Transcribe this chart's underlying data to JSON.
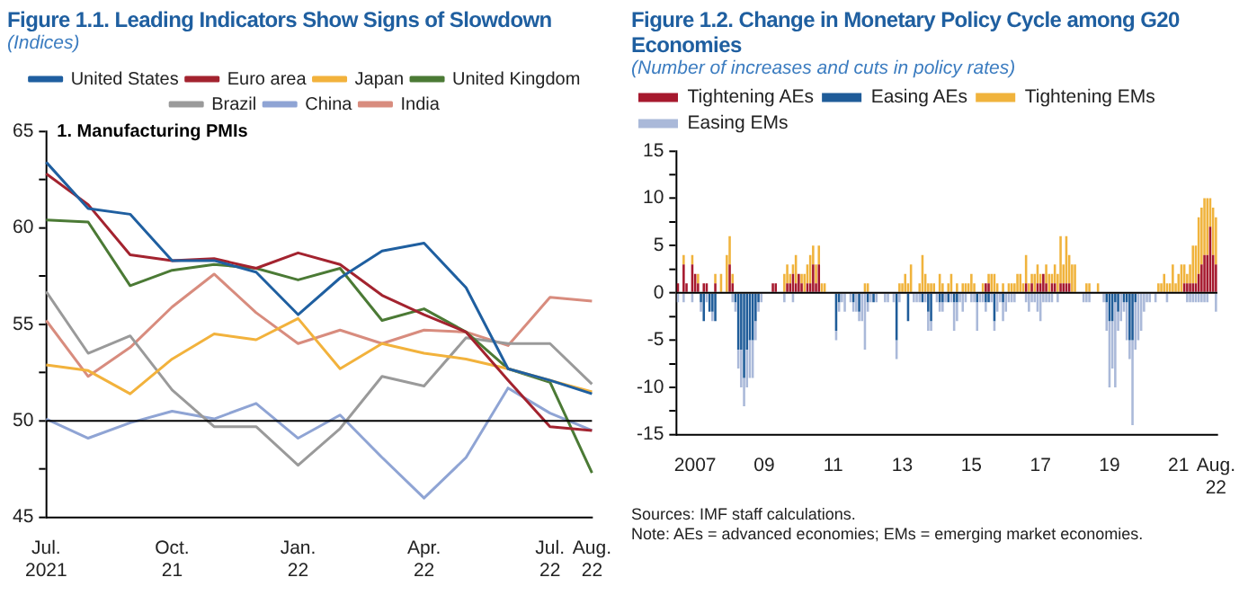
{
  "chart_data": [
    {
      "type": "line",
      "title": "Figure 1.1.  Leading Indicators Show Signs of Slowdown",
      "subtitle": "(Indices)",
      "annotations": [
        "1. Manufacturing PMIs"
      ],
      "categories": [
        "Jul. 2021",
        null,
        null,
        "Oct. 21",
        null,
        null,
        "Jan. 22",
        null,
        null,
        "Apr. 22",
        null,
        null,
        "Jul. 22",
        "Aug. 22"
      ],
      "ylim": [
        45,
        65
      ],
      "yticks": [
        45,
        {
          "value": 47.5,
          "label": null
        },
        50,
        {
          "value": 52.5,
          "label": null
        },
        55,
        {
          "value": 57.5,
          "label": null
        },
        60,
        {
          "value": 62.5,
          "label": null
        },
        65
      ],
      "legend": "top",
      "marker": "none",
      "line_style": "solid",
      "ref_lines": [
        {
          "axis": "y",
          "value": 50,
          "color": "#000000"
        }
      ],
      "series": [
        {
          "name": "United States",
          "color": "#1f5fa0",
          "values": [
            63.4,
            61.0,
            60.7,
            58.3,
            58.3,
            57.7,
            55.5,
            57.4,
            58.8,
            59.2,
            56.9,
            52.7,
            52.1,
            51.4
          ]
        },
        {
          "name": "Euro area",
          "color": "#a3232f",
          "values": [
            62.8,
            61.2,
            58.6,
            58.3,
            58.4,
            57.9,
            58.7,
            58.1,
            56.5,
            55.5,
            54.6,
            52.1,
            49.7,
            49.5
          ]
        },
        {
          "name": "Japan",
          "color": "#f2b23c",
          "values": [
            52.9,
            52.6,
            51.4,
            53.2,
            54.5,
            54.2,
            55.3,
            52.7,
            54.0,
            53.5,
            53.2,
            52.7,
            52.1,
            51.5
          ]
        },
        {
          "name": "United Kingdom",
          "color": "#4b7a35",
          "values": [
            60.4,
            60.3,
            57.0,
            57.8,
            58.1,
            57.9,
            57.3,
            57.9,
            55.2,
            55.8,
            54.6,
            52.7,
            52.0,
            47.3
          ]
        },
        {
          "name": "Brazil",
          "color": "#9a9a9a",
          "values": [
            56.7,
            53.5,
            54.4,
            51.6,
            49.7,
            49.7,
            47.7,
            49.6,
            52.3,
            51.8,
            54.3,
            54.0,
            54.0,
            51.9
          ]
        },
        {
          "name": "China",
          "color": "#8fa4d4",
          "values": [
            50.1,
            49.1,
            49.9,
            50.5,
            50.1,
            50.9,
            49.1,
            50.3,
            48.1,
            46.0,
            48.1,
            51.7,
            50.4,
            49.5
          ]
        },
        {
          "name": "India",
          "color": "#d88c7e",
          "values": [
            55.2,
            52.3,
            53.8,
            55.9,
            57.6,
            55.6,
            54.0,
            54.7,
            54.0,
            54.7,
            54.6,
            53.9,
            56.4,
            56.2
          ]
        }
      ]
    },
    {
      "type": "bar",
      "stacked": true,
      "title": "Figure 1.2.  Change in Monetary Policy Cycle among G20 Economies",
      "subtitle": "(Number of increases and cuts in policy rates)",
      "annotations": [
        "Sources: IMF staff calculations.",
        "Note: AEs = advanced economies; EMs = emerging market economies."
      ],
      "categories": [
        null,
        null,
        null,
        null,
        null,
        null,
        "2007",
        null,
        null,
        null,
        null,
        null,
        null,
        null,
        null,
        null,
        null,
        null,
        null,
        null,
        null,
        null,
        null,
        null,
        null,
        null,
        null,
        null,
        null,
        null,
        "09",
        null,
        null,
        null,
        null,
        null,
        null,
        null,
        null,
        null,
        null,
        null,
        null,
        null,
        null,
        null,
        null,
        null,
        null,
        null,
        null,
        null,
        null,
        null,
        "11",
        null,
        null,
        null,
        null,
        null,
        null,
        null,
        null,
        null,
        null,
        null,
        null,
        null,
        null,
        null,
        null,
        null,
        null,
        null,
        null,
        null,
        null,
        null,
        "13",
        null,
        null,
        null,
        null,
        null,
        null,
        null,
        null,
        null,
        null,
        null,
        null,
        null,
        null,
        null,
        null,
        null,
        null,
        null,
        null,
        null,
        null,
        null,
        "15",
        null,
        null,
        null,
        null,
        null,
        null,
        null,
        null,
        null,
        null,
        null,
        null,
        null,
        null,
        null,
        null,
        null,
        null,
        null,
        null,
        null,
        null,
        null,
        "17",
        null,
        null,
        null,
        null,
        null,
        null,
        null,
        null,
        null,
        null,
        null,
        null,
        null,
        null,
        null,
        null,
        null,
        null,
        null,
        null,
        null,
        null,
        null,
        "19",
        null,
        null,
        null,
        null,
        null,
        null,
        null,
        null,
        null,
        null,
        null,
        null,
        null,
        null,
        null,
        null,
        null,
        null,
        null,
        null,
        null,
        null,
        null,
        "21",
        null,
        null,
        null,
        null,
        null,
        null,
        null,
        null,
        null,
        null,
        null,
        null,
        "Aug. 22"
      ],
      "ylim": [
        -15,
        15
      ],
      "yticks": [
        -15,
        {
          "value": -12.5,
          "label": null
        },
        -10,
        {
          "value": -7.5,
          "label": null
        },
        -5,
        {
          "value": -2.5,
          "label": null
        },
        0,
        {
          "value": 2.5,
          "label": null
        },
        5,
        {
          "value": 7.5,
          "label": null
        },
        10,
        {
          "value": 12.5,
          "label": null
        },
        15
      ],
      "legend": "top left",
      "ref_lines": [
        {
          "axis": "y",
          "value": 0,
          "color": "#000000"
        }
      ],
      "series": [
        {
          "name": "Tightening AEs",
          "color": "#a6192e",
          "values": [
            1,
            0,
            3,
            1,
            0,
            3,
            2,
            1,
            0,
            1,
            1,
            0,
            0,
            1,
            0,
            0,
            0,
            0,
            3,
            1,
            0,
            0,
            0,
            0,
            0,
            0,
            0,
            0,
            0,
            0,
            0,
            0,
            0,
            1,
            1,
            0,
            0,
            0,
            1,
            1,
            2,
            1,
            2,
            1,
            0,
            1,
            1,
            3,
            1,
            3,
            0,
            0,
            0,
            0,
            0,
            0,
            0,
            0,
            0,
            0,
            0,
            0,
            0,
            0,
            0,
            0,
            0,
            0,
            0,
            0,
            0,
            0,
            0,
            0,
            0,
            0,
            0,
            0,
            0,
            0,
            0,
            0,
            0,
            0,
            0,
            0,
            0,
            0,
            0,
            0,
            0,
            0,
            0,
            0,
            0,
            0,
            0,
            0,
            0,
            0,
            0,
            0,
            0,
            0,
            0,
            0,
            0,
            1,
            1,
            0,
            0,
            0,
            0,
            0,
            0,
            0,
            0,
            0,
            0,
            0,
            0,
            1,
            0,
            1,
            0,
            1,
            1,
            2,
            1,
            0,
            1,
            1,
            0,
            1,
            1,
            1,
            1,
            0,
            0,
            0,
            0,
            0,
            0,
            0,
            0,
            0,
            0,
            0,
            0,
            0,
            0,
            0,
            0,
            0,
            0,
            0,
            0,
            0,
            0,
            0,
            0,
            0,
            0,
            0,
            0,
            0,
            0,
            0,
            0,
            0,
            0,
            0,
            0,
            0,
            0,
            0,
            1,
            1,
            1,
            1,
            1,
            2,
            3,
            4,
            4,
            7,
            4,
            3
          ]
        },
        {
          "name": "Easing AEs",
          "color": "#1f5c99",
          "values": [
            0,
            0,
            0,
            0,
            0,
            0,
            0,
            0,
            -1,
            -3,
            0,
            -2,
            -2,
            -3,
            0,
            0,
            0,
            0,
            0,
            0,
            -1,
            -6,
            -6,
            -9,
            -6,
            -5,
            -5,
            -3,
            -1,
            0,
            0,
            0,
            0,
            0,
            0,
            0,
            0,
            0,
            0,
            0,
            0,
            0,
            0,
            0,
            0,
            0,
            0,
            0,
            0,
            0,
            0,
            0,
            0,
            0,
            0,
            -4,
            -1,
            0,
            0,
            0,
            0,
            -1,
            0,
            -2,
            0,
            0,
            -1,
            0,
            -1,
            0,
            0,
            0,
            0,
            0,
            0,
            0,
            -5,
            0,
            0,
            0,
            -3,
            0,
            0,
            0,
            0,
            -1,
            0,
            -2,
            -3,
            0,
            0,
            -1,
            -1,
            0,
            -1,
            0,
            -1,
            -1,
            0,
            0,
            0,
            0,
            0,
            0,
            -1,
            0,
            0,
            -1,
            -1,
            0,
            -3,
            0,
            0,
            -1,
            0,
            0,
            0,
            0,
            0,
            0,
            0,
            0,
            0,
            0,
            0,
            0,
            0,
            0,
            0,
            0,
            0,
            0,
            0,
            0,
            0,
            0,
            0,
            0,
            0,
            0,
            0,
            0,
            0,
            0,
            0,
            0,
            0,
            0,
            0,
            -1,
            -3,
            -3,
            -1,
            -2,
            0,
            -1,
            -1,
            -5,
            -5,
            -1,
            0,
            0,
            0,
            0,
            0,
            0,
            0,
            0,
            0,
            0,
            0,
            0,
            0,
            0,
            0,
            0,
            0,
            0,
            0,
            0,
            0,
            0,
            0,
            0,
            0,
            0,
            0,
            0
          ]
        },
        {
          "name": "Tightening EMs",
          "color": "#f0b33c",
          "values": [
            0,
            0,
            1,
            0,
            0,
            1,
            0,
            1,
            0,
            0,
            0,
            0,
            0,
            1,
            0,
            2,
            0,
            4,
            3,
            1,
            0,
            0,
            0,
            0,
            0,
            0,
            0,
            0,
            0,
            0,
            0,
            0,
            0,
            0,
            0,
            0,
            0,
            2,
            2,
            1,
            1,
            3,
            0,
            1,
            2,
            2,
            3,
            2,
            2,
            2,
            1,
            1,
            0,
            0,
            0,
            0,
            0,
            0,
            0,
            0,
            0,
            0,
            0,
            0,
            0,
            1,
            1,
            0,
            0,
            0,
            0,
            0,
            0,
            0,
            0,
            0,
            0,
            1,
            1,
            2,
            1,
            3,
            0,
            0,
            1,
            4,
            2,
            1,
            1,
            1,
            0,
            2,
            1,
            0,
            1,
            2,
            0,
            1,
            0,
            1,
            1,
            1,
            2,
            1,
            0,
            0,
            1,
            0,
            1,
            2,
            2,
            1,
            0,
            1,
            0,
            1,
            1,
            1,
            2,
            2,
            1,
            3,
            1,
            1,
            2,
            2,
            1,
            0,
            2,
            2,
            1,
            2,
            2,
            5,
            2,
            5,
            3,
            3,
            3,
            0,
            0,
            0,
            1,
            1,
            0,
            0,
            1,
            0,
            0,
            0,
            0,
            0,
            0,
            0,
            0,
            0,
            0,
            0,
            0,
            0,
            0,
            0,
            0,
            0,
            0,
            0,
            0,
            1,
            1,
            2,
            1,
            1,
            3,
            1,
            2,
            3,
            2,
            1,
            2,
            4,
            4,
            6,
            6,
            6,
            6,
            3,
            5,
            5
          ]
        },
        {
          "name": "Easing EMs",
          "color": "#aab9d9",
          "values": [
            -1,
            0,
            -1,
            0,
            0,
            -1,
            0,
            0,
            -1,
            0,
            -1,
            0,
            -1,
            0,
            0,
            0,
            0,
            0,
            0,
            -1,
            -1,
            -2,
            -4,
            -3,
            -4,
            -4,
            -4,
            -2,
            -1,
            -1,
            0,
            0,
            0,
            0,
            0,
            0,
            0,
            -1,
            0,
            0,
            -1,
            0,
            0,
            0,
            0,
            0,
            0,
            0,
            0,
            0,
            0,
            0,
            0,
            0,
            0,
            -1,
            -1,
            -1,
            -2,
            0,
            -1,
            -1,
            -2,
            -1,
            -3,
            -6,
            -1,
            -1,
            0,
            -1,
            0,
            0,
            -1,
            -1,
            0,
            -1,
            -2,
            -1,
            0,
            0,
            0,
            0,
            -1,
            -1,
            -1,
            0,
            -1,
            -2,
            -1,
            0,
            -1,
            -1,
            -1,
            -1,
            0,
            -1,
            -3,
            -2,
            -1,
            -2,
            -1,
            0,
            -1,
            -1,
            -3,
            -1,
            -1,
            -1,
            0,
            -1,
            -1,
            -2,
            -1,
            -2,
            -2,
            -1,
            -1,
            -1,
            0,
            0,
            0,
            -1,
            -2,
            -1,
            -1,
            -2,
            -3,
            -1,
            -1,
            -1,
            -1,
            0,
            -1,
            0,
            0,
            0,
            0,
            0,
            0,
            0,
            0,
            -1,
            -1,
            -1,
            0,
            0,
            0,
            0,
            -1,
            -3,
            -7,
            -5,
            -9,
            -2,
            -3,
            -1,
            -4,
            -2,
            -9,
            -5,
            -5,
            -4,
            -2,
            -1,
            -1,
            0,
            -1,
            0,
            0,
            0,
            -1,
            0,
            0,
            0,
            0,
            0,
            0,
            -1,
            -1,
            -1,
            -1,
            -1,
            -1,
            -1,
            -1,
            0,
            0,
            -2
          ]
        }
      ]
    }
  ]
}
